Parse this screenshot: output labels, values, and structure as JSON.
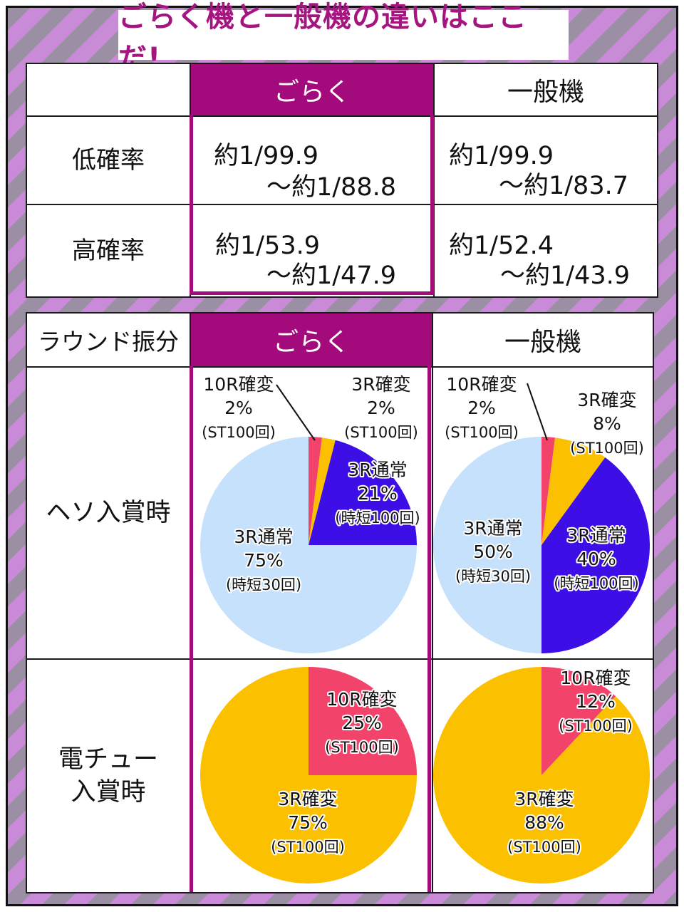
{
  "title": "ごらく機と一般機の違いはここだ!",
  "table1": {
    "col_gor": "ごらく",
    "col_gen": "一般機",
    "rows": [
      {
        "label": "低確率",
        "gor_line1": "約1/99.9",
        "gor_line2": "〜約1/88.8",
        "gen_line1": "約1/99.9",
        "gen_line2": "〜約1/83.7"
      },
      {
        "label": "高確率",
        "gor_line1": "約1/53.9",
        "gor_line2": "〜約1/47.9",
        "gen_line1": "約1/52.4",
        "gen_line2": "〜約1/43.9"
      }
    ]
  },
  "table2": {
    "header_label": "ラウンド振分",
    "col_gor": "ごらく",
    "col_gen": "一般機",
    "row1_label": "ヘソ入賞時",
    "row2_label_line1": "電チュー",
    "row2_label_line2": "入賞時"
  },
  "colors": {
    "accent_purple": "#a30a7b",
    "r10_kakuhen": "#f2436b",
    "r3_kakuhen": "#fbc000",
    "r3_tsujo_st100": "#3d0fe6",
    "r3_tsujo_st30": "#c5e1fb"
  },
  "chart_data": [
    {
      "type": "pie",
      "panel": "ごらく / ヘソ入賞時",
      "slices": [
        {
          "name": "10R確変",
          "value": 2,
          "pct": "2%",
          "note": "(ST100回)",
          "color": "#f2436b"
        },
        {
          "name": "3R確変",
          "value": 2,
          "pct": "2%",
          "note": "(ST100回)",
          "color": "#fbc000"
        },
        {
          "name": "3R通常",
          "value": 21,
          "pct": "21%",
          "note": "(時短100回)",
          "color": "#3d0fe6"
        },
        {
          "name": "3R通常",
          "value": 75,
          "pct": "75%",
          "note": "(時短30回)",
          "color": "#c5e1fb"
        }
      ]
    },
    {
      "type": "pie",
      "panel": "一般機 / ヘソ入賞時",
      "slices": [
        {
          "name": "10R確変",
          "value": 2,
          "pct": "2%",
          "note": "(ST100回)",
          "color": "#f2436b"
        },
        {
          "name": "3R確変",
          "value": 8,
          "pct": "8%",
          "note": "(ST100回)",
          "color": "#fbc000"
        },
        {
          "name": "3R通常",
          "value": 40,
          "pct": "40%",
          "note": "(時短100回)",
          "color": "#3d0fe6"
        },
        {
          "name": "3R通常",
          "value": 50,
          "pct": "50%",
          "note": "(時短30回)",
          "color": "#c5e1fb"
        }
      ]
    },
    {
      "type": "pie",
      "panel": "ごらく / 電チュー入賞時",
      "slices": [
        {
          "name": "10R確変",
          "value": 25,
          "pct": "25%",
          "note": "(ST100回)",
          "color": "#f2436b"
        },
        {
          "name": "3R確変",
          "value": 75,
          "pct": "75%",
          "note": "(ST100回)",
          "color": "#fbc000"
        }
      ]
    },
    {
      "type": "pie",
      "panel": "一般機 / 電チュー入賞時",
      "slices": [
        {
          "name": "10R確変",
          "value": 12,
          "pct": "12%",
          "note": "(ST100回)",
          "color": "#f2436b"
        },
        {
          "name": "3R確変",
          "value": 88,
          "pct": "88%",
          "note": "(ST100回)",
          "color": "#fbc000"
        }
      ]
    }
  ]
}
